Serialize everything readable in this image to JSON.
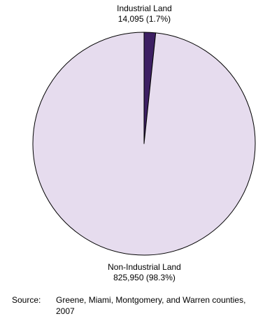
{
  "chart_data": {
    "type": "pie",
    "slices": [
      {
        "label": "Industrial Land",
        "value": 14095,
        "value_text": "14,095 (1.7%)",
        "percent": 1.7,
        "color": "#3d1f63"
      },
      {
        "label": "Non-Industrial Land",
        "value": 825950,
        "value_text": "825,950 (98.3%)",
        "percent": 98.3,
        "color": "#e6dcee"
      }
    ],
    "edge_color": "#000000",
    "legend": "none"
  },
  "source": {
    "label": "Source:",
    "text": "Greene, Miami, Montgomery, and Warren counties, 2007"
  }
}
